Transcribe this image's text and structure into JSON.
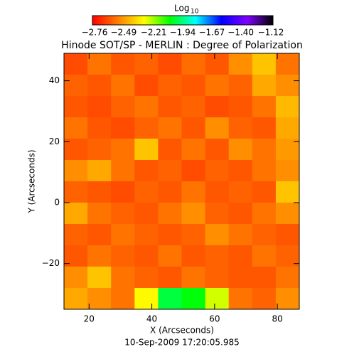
{
  "chart_data": {
    "type": "heatmap",
    "title": "Hinode SOT/SP - MERLIN : Degree of Polarization",
    "x_label": "X (Arcseconds)",
    "y_label": "Y (Arcseconds)",
    "footer": "10-Sep-2009 17:20:05.985",
    "colorbar_label": "Log",
    "colorbar_label_sub": "10",
    "xlim": [
      12,
      87
    ],
    "ylim": [
      -35,
      49
    ],
    "xticks": [
      20,
      40,
      60,
      80
    ],
    "yticks": [
      -20,
      0,
      20,
      40
    ],
    "clim": [
      -2.76,
      -1.12
    ],
    "cticks": [
      -2.76,
      -2.49,
      -2.21,
      -1.94,
      -1.67,
      -1.4,
      -1.12
    ],
    "colormap": [
      "#ff0000",
      "#ff8000",
      "#ffff00",
      "#00ff00",
      "#00ffff",
      "#0000ff",
      "#8000ff",
      "#000000"
    ],
    "values": [
      [
        -2.62,
        -2.55,
        -2.6,
        -2.58,
        -2.62,
        -2.56,
        -2.6,
        -2.5,
        -2.4,
        -2.55
      ],
      [
        -2.58,
        -2.6,
        -2.55,
        -2.62,
        -2.58,
        -2.6,
        -2.55,
        -2.58,
        -2.45,
        -2.5
      ],
      [
        -2.6,
        -2.62,
        -2.58,
        -2.55,
        -2.6,
        -2.58,
        -2.62,
        -2.6,
        -2.55,
        -2.42
      ],
      [
        -2.55,
        -2.6,
        -2.62,
        -2.58,
        -2.55,
        -2.6,
        -2.5,
        -2.58,
        -2.6,
        -2.45
      ],
      [
        -2.6,
        -2.58,
        -2.55,
        -2.4,
        -2.6,
        -2.55,
        -2.6,
        -2.5,
        -2.55,
        -2.48
      ],
      [
        -2.5,
        -2.45,
        -2.55,
        -2.6,
        -2.58,
        -2.62,
        -2.58,
        -2.6,
        -2.55,
        -2.5
      ],
      [
        -2.58,
        -2.6,
        -2.62,
        -2.58,
        -2.6,
        -2.55,
        -2.6,
        -2.58,
        -2.6,
        -2.4
      ],
      [
        -2.45,
        -2.55,
        -2.58,
        -2.6,
        -2.55,
        -2.5,
        -2.58,
        -2.6,
        -2.55,
        -2.5
      ],
      [
        -2.58,
        -2.6,
        -2.55,
        -2.58,
        -2.6,
        -2.58,
        -2.5,
        -2.55,
        -2.58,
        -2.6
      ],
      [
        -2.6,
        -2.55,
        -2.58,
        -2.6,
        -2.55,
        -2.6,
        -2.58,
        -2.6,
        -2.55,
        -2.58
      ],
      [
        -2.5,
        -2.4,
        -2.55,
        -2.58,
        -2.6,
        -2.55,
        -2.58,
        -2.6,
        -2.6,
        -2.55
      ],
      [
        -2.45,
        -2.5,
        -2.55,
        -2.3,
        -2.0,
        -2.05,
        -2.25,
        -2.55,
        -2.58,
        -2.5
      ]
    ]
  }
}
